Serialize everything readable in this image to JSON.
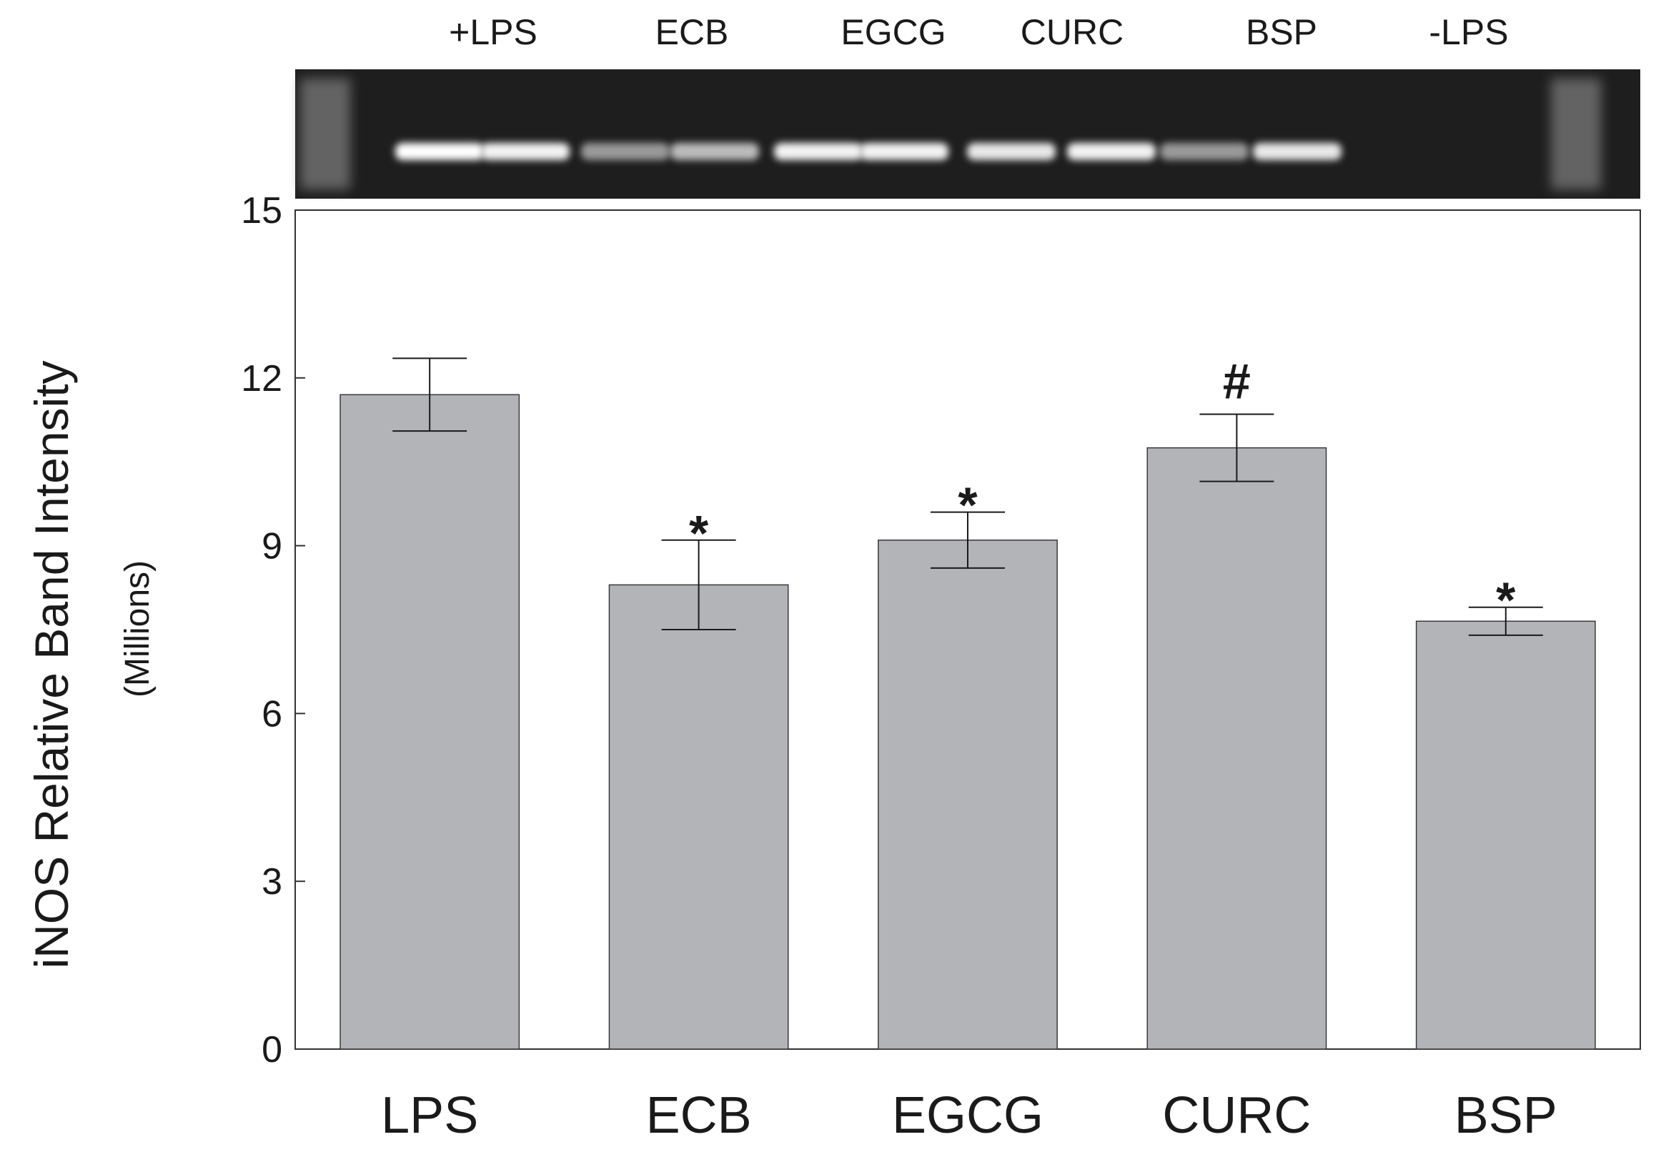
{
  "blot": {
    "lane_labels": [
      "+LPS",
      "ECB",
      "EGCG",
      "CURC",
      "BSP",
      "-LPS"
    ],
    "background_color": "#1e1e1e",
    "band_color": "#ffffff",
    "band_intensity": [
      1.0,
      0.95,
      0.55,
      0.7,
      0.95,
      0.95,
      0.9,
      0.95,
      0.55,
      0.9,
      0.0,
      0.0
    ]
  },
  "chart_data": {
    "type": "bar",
    "categories": [
      "LPS",
      "ECB",
      "EGCG",
      "CURC",
      "BSP"
    ],
    "values": [
      11.7,
      8.3,
      9.1,
      10.75,
      7.65
    ],
    "errors": [
      0.65,
      0.8,
      0.5,
      0.6,
      0.25
    ],
    "annotations": [
      "",
      "*",
      "*",
      "#",
      "*"
    ],
    "ylabel": "iNOS Relative Band Intensity",
    "ylabel_unit": "(Millions)",
    "xlabel": "",
    "ylim": [
      0,
      15
    ],
    "yticks": [
      "0",
      "3",
      "6",
      "9",
      "12",
      "15"
    ],
    "bar_color": "#b3b4b8",
    "grid": false
  }
}
